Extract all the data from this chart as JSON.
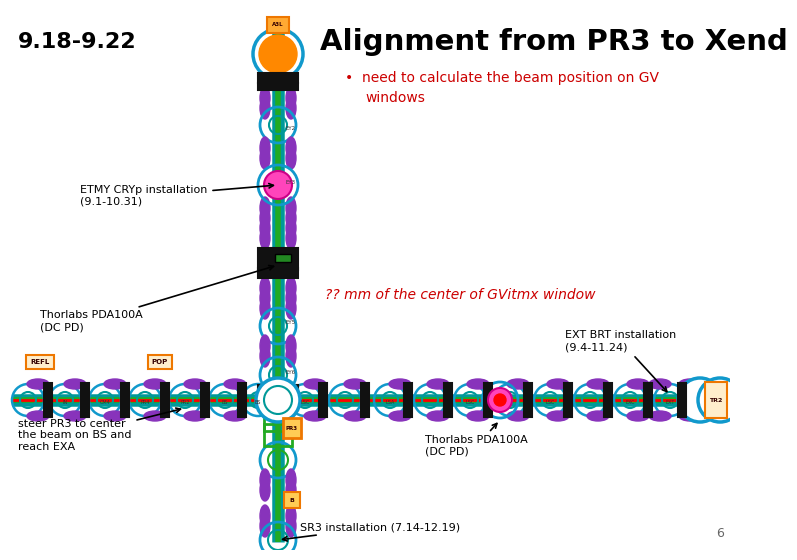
{
  "title": "Alignment from PR3 to Xend",
  "date_label": "9.18-9.22",
  "subtitle": "need to calculate the beam position on GV\nwindows",
  "bg_color": "#ffffff",
  "title_color": "#000000",
  "subtitle_color": "#cc0000",
  "date_color": "#000000",
  "red_note": "?? mm of the center of GVitmx window",
  "page_number": "6",
  "vx": 0.372,
  "hy": 0.37,
  "co": "#1199cc",
  "ci": "#009999",
  "ep": "#8833bb",
  "blk": "#111111",
  "grn": "#22aa22",
  "pink": "#ff44bb",
  "org": "#ee7700"
}
